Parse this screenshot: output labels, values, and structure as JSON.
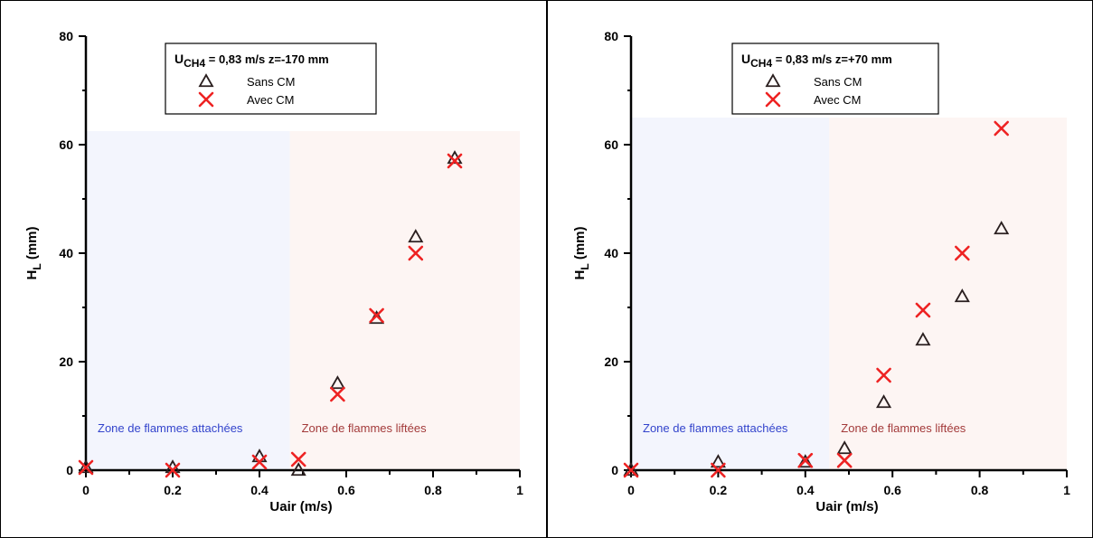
{
  "chart_data": [
    {
      "type": "scatter",
      "xlabel": "Uair (m/s)",
      "ylabel": "H_L (mm)",
      "ylabel_main": "H",
      "ylabel_sub": "L",
      "ylabel_unit": " (mm)",
      "xlim": [
        0,
        1
      ],
      "ylim": [
        0,
        80
      ],
      "xticks": [
        "0",
        "0.2",
        "0.4",
        "0.6",
        "0.8",
        "1"
      ],
      "yticks": [
        "0",
        "20",
        "40",
        "60",
        "80"
      ],
      "legend_title": {
        "main": "U",
        "sub": "CH4",
        "rest": " = 0,83 m/s   z=-170 mm"
      },
      "legend_placement": "top-center",
      "zones": [
        {
          "label": "Zone de flammes attachées",
          "x_range": [
            0,
            0.47
          ],
          "y_top": 62.5,
          "fill": "#f3f5fd",
          "text_color": "#3344cc"
        },
        {
          "label": "Zone de flammes liftées",
          "x_range": [
            0.47,
            1.0
          ],
          "y_top": 62.5,
          "fill": "#fdf5f3",
          "text_color": "#a33a3a"
        }
      ],
      "series": [
        {
          "name": "Sans CM",
          "marker": "triangle",
          "color": "#2a1f1f",
          "x": [
            0,
            0.2,
            0.4,
            0.49,
            0.58,
            0.67,
            0.76,
            0.85
          ],
          "y": [
            0.5,
            0.5,
            2.5,
            0,
            16,
            28,
            43,
            57.5
          ]
        },
        {
          "name": "Avec CM",
          "marker": "cross",
          "color": "#ee2222",
          "x": [
            0,
            0.2,
            0.4,
            0.49,
            0.58,
            0.67,
            0.76,
            0.85
          ],
          "y": [
            0.5,
            0,
            1.5,
            2,
            14,
            28.5,
            40,
            57
          ]
        }
      ]
    },
    {
      "type": "scatter",
      "xlabel": "Uair (m/s)",
      "ylabel": "H_L (mm)",
      "ylabel_main": "H",
      "ylabel_sub": "L",
      "ylabel_unit": " (mm)",
      "xlim": [
        0,
        1
      ],
      "ylim": [
        0,
        80
      ],
      "xticks": [
        "0",
        "0.2",
        "0.4",
        "0.6",
        "0.8",
        "1"
      ],
      "yticks": [
        "0",
        "20",
        "40",
        "60",
        "80"
      ],
      "legend_title": {
        "main": "U",
        "sub": "CH4",
        "rest": " = 0,83 m/s   z=+70 mm"
      },
      "legend_placement": "top-center",
      "zones": [
        {
          "label": "Zone de flammes attachées",
          "x_range": [
            0,
            0.455
          ],
          "y_top": 65,
          "fill": "#f3f5fd",
          "text_color": "#3344cc"
        },
        {
          "label": "Zone de flammes liftées",
          "x_range": [
            0.455,
            1.0
          ],
          "y_top": 65,
          "fill": "#fdf5f3",
          "text_color": "#a33a3a"
        }
      ],
      "series": [
        {
          "name": "Sans CM",
          "marker": "triangle",
          "color": "#2a1f1f",
          "x": [
            0,
            0.2,
            0.4,
            0.49,
            0.58,
            0.67,
            0.76,
            0.85
          ],
          "y": [
            0,
            1.5,
            1.5,
            4,
            12.5,
            24,
            32,
            44.5
          ]
        },
        {
          "name": "Avec CM",
          "marker": "cross",
          "color": "#ee2222",
          "x": [
            0,
            0.2,
            0.4,
            0.49,
            0.58,
            0.67,
            0.76,
            0.85
          ],
          "y": [
            0,
            0,
            1.8,
            1.8,
            17.5,
            29.5,
            40,
            63
          ]
        }
      ]
    }
  ]
}
